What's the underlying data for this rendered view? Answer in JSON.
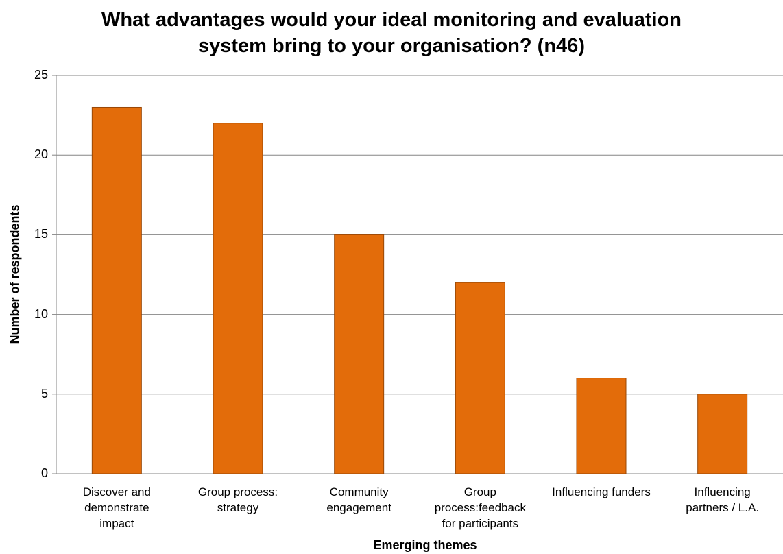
{
  "chart_data": {
    "type": "bar",
    "title_lines": [
      "What advantages would your ideal monitoring and evaluation",
      "system  bring to your organisation? (n46)"
    ],
    "xlabel": "Emerging themes",
    "ylabel": "Number of respondents",
    "categories": [
      [
        "Discover and",
        "demonstrate",
        "impact"
      ],
      [
        "Group process:",
        "strategy"
      ],
      [
        "Community",
        "engagement"
      ],
      [
        "Group",
        "process:feedback",
        "for participants"
      ],
      [
        "Influencing funders"
      ],
      [
        "Influencing",
        "partners / L.A."
      ]
    ],
    "values": [
      23,
      22,
      15,
      12,
      6,
      5
    ],
    "ylim": [
      0,
      25
    ],
    "yticks": [
      "0",
      "5",
      "10",
      "15",
      "20",
      "25"
    ],
    "grid": true,
    "bar_color": "#E36C0A",
    "bar_edge_color": "#984807"
  }
}
